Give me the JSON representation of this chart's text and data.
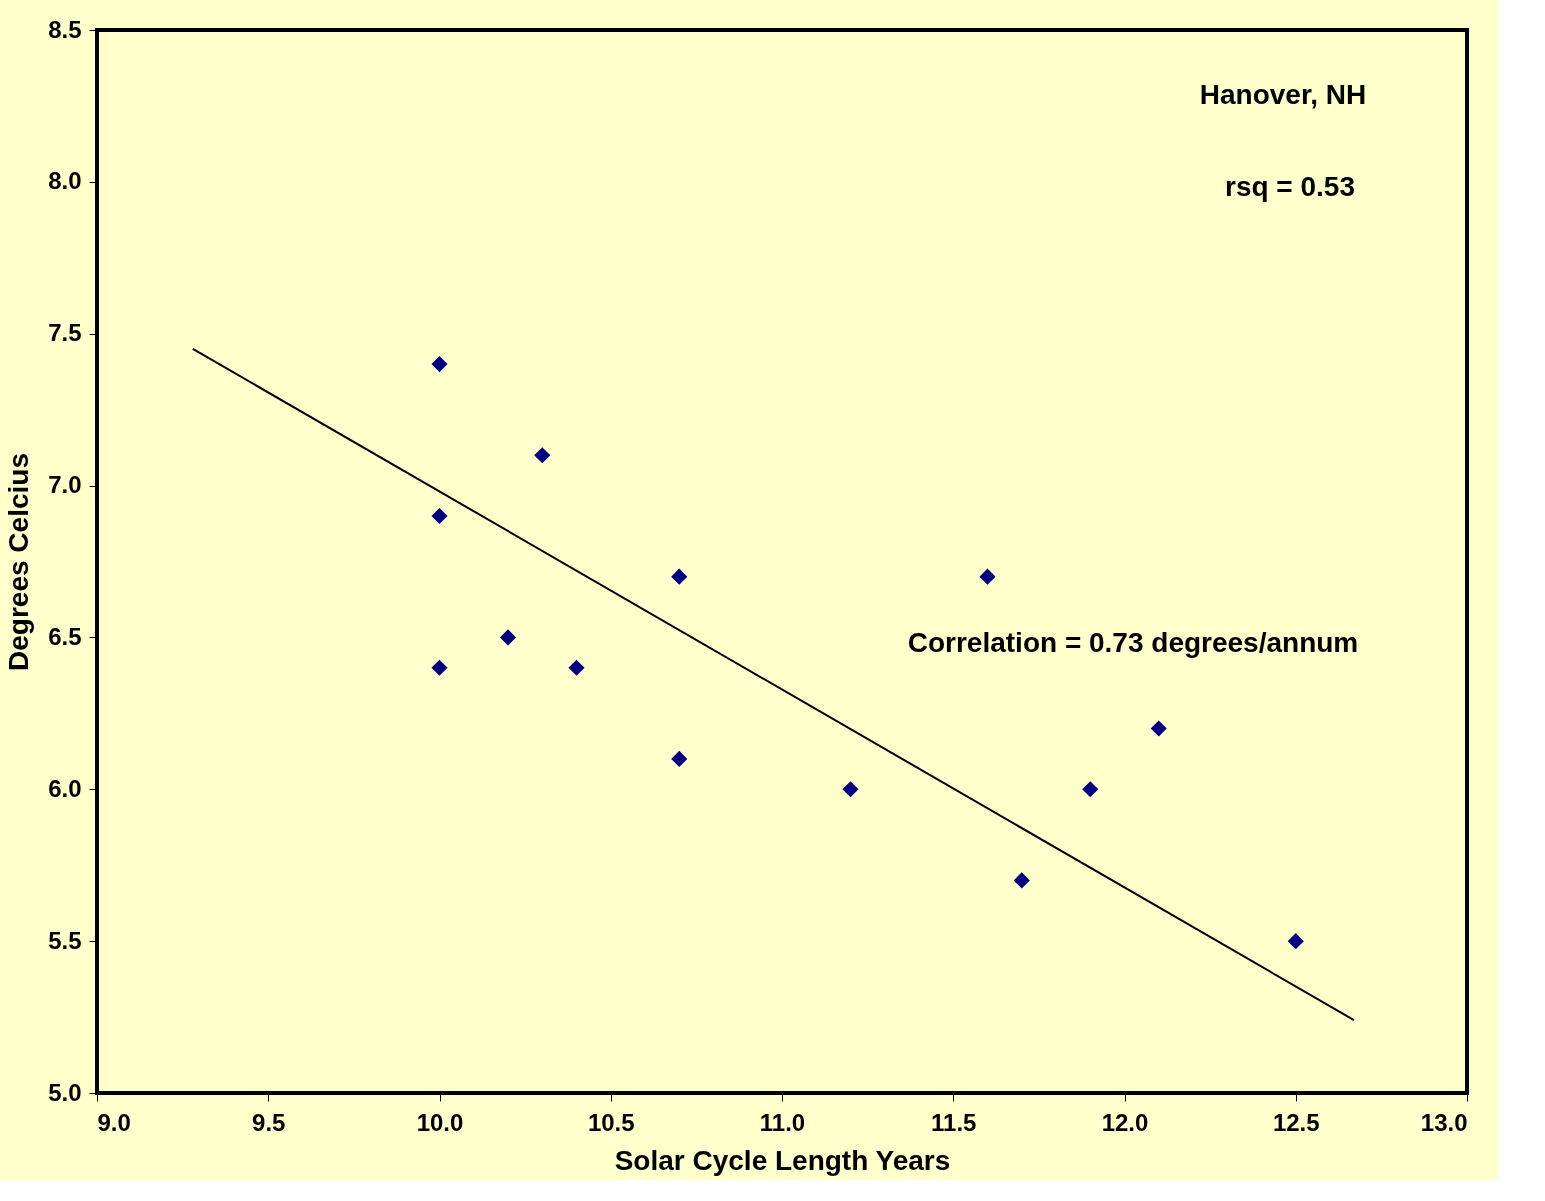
{
  "chart_data": {
    "type": "scatter",
    "xlabel": "Solar Cycle Length Years",
    "ylabel": "Degrees Celcius",
    "xlim": [
      9.0,
      13.0
    ],
    "ylim": [
      5.0,
      8.5
    ],
    "xticks": [
      {
        "value": 9.0,
        "label": "9.0"
      },
      {
        "value": 9.5,
        "label": "9.5"
      },
      {
        "value": 10.0,
        "label": "10.0"
      },
      {
        "value": 10.5,
        "label": "10.5"
      },
      {
        "value": 11.0,
        "label": "11.0"
      },
      {
        "value": 11.5,
        "label": "11.5"
      },
      {
        "value": 12.0,
        "label": "12.0"
      },
      {
        "value": 12.5,
        "label": "12.5"
      },
      {
        "value": 13.0,
        "label": "13.0"
      }
    ],
    "yticks": [
      {
        "value": 5.0,
        "label": "5.0"
      },
      {
        "value": 5.5,
        "label": "5.5"
      },
      {
        "value": 6.0,
        "label": "6.0"
      },
      {
        "value": 6.5,
        "label": "6.5"
      },
      {
        "value": 7.0,
        "label": "7.0"
      },
      {
        "value": 7.5,
        "label": "7.5"
      },
      {
        "value": 8.0,
        "label": "8.0"
      },
      {
        "value": 8.5,
        "label": "8.5"
      }
    ],
    "marker": "diamond",
    "series": [
      {
        "color": "#000080",
        "x": [
          10.0,
          10.3,
          10.0,
          10.7,
          10.2,
          10.0,
          10.4,
          10.7,
          11.2,
          11.6,
          11.7,
          11.9,
          12.1,
          12.5
        ],
        "values": [
          7.4,
          7.1,
          6.9,
          6.7,
          6.5,
          6.4,
          6.4,
          6.1,
          6.0,
          6.7,
          5.7,
          6.0,
          6.2,
          5.5
        ]
      },
      {
        "type": "line",
        "color": "#000000",
        "line_style": "solid",
        "marker": "none",
        "x": [
          9.28,
          12.67
        ],
        "values": [
          7.45,
          5.24
        ]
      }
    ],
    "annotations": [
      "Hanover, NH",
      "rsq = 0.53",
      "Correlation = 0.73 degrees/annum"
    ]
  }
}
